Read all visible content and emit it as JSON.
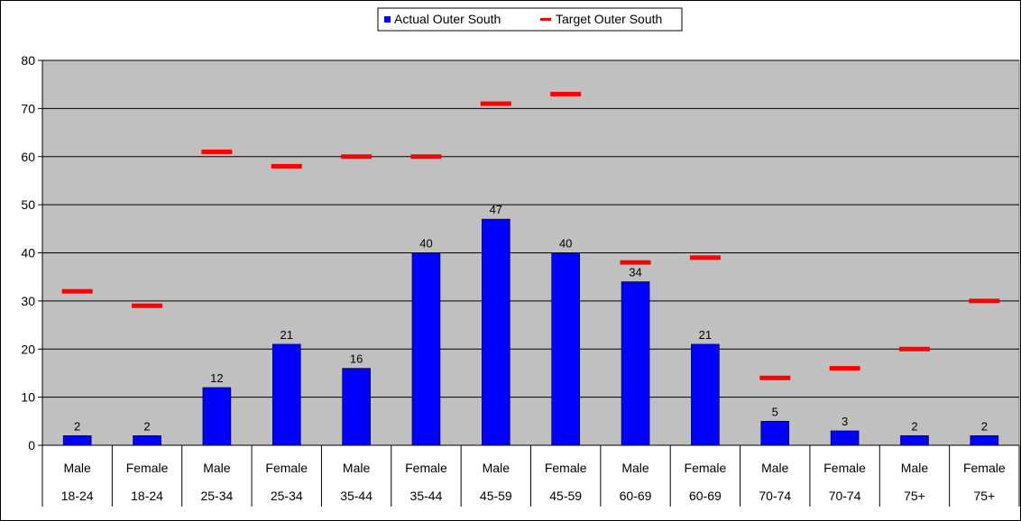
{
  "chart_data": {
    "type": "bar",
    "title": "",
    "xlabel": "",
    "ylabel": "",
    "ylim": [
      0,
      80
    ],
    "yticks": [
      0,
      10,
      20,
      30,
      40,
      50,
      60,
      70,
      80
    ],
    "grid": true,
    "legend_position": "top-center",
    "categories": [
      [
        "Male",
        "18-24"
      ],
      [
        "Female",
        "18-24"
      ],
      [
        "Male",
        "25-34"
      ],
      [
        "Female",
        "25-34"
      ],
      [
        "Male",
        "35-44"
      ],
      [
        "Female",
        "35-44"
      ],
      [
        "Male",
        "45-59"
      ],
      [
        "Female",
        "45-59"
      ],
      [
        "Male",
        "60-69"
      ],
      [
        "Female",
        "60-69"
      ],
      [
        "Male",
        "70-74"
      ],
      [
        "Female",
        "70-74"
      ],
      [
        "Male",
        "75+"
      ],
      [
        "Female",
        "75+"
      ]
    ],
    "series": [
      {
        "name": "Actual Outer South",
        "kind": "bar",
        "color": "#0000FF",
        "values": [
          2,
          2,
          12,
          21,
          16,
          40,
          47,
          40,
          34,
          21,
          5,
          3,
          2,
          2
        ]
      },
      {
        "name": "Target Outer South",
        "kind": "marker",
        "color": "#FF0000",
        "values": [
          32,
          29,
          61,
          58,
          60,
          60,
          71,
          73,
          38,
          39,
          14,
          16,
          20,
          30
        ]
      }
    ],
    "plot_background": "#C0C0C0"
  }
}
